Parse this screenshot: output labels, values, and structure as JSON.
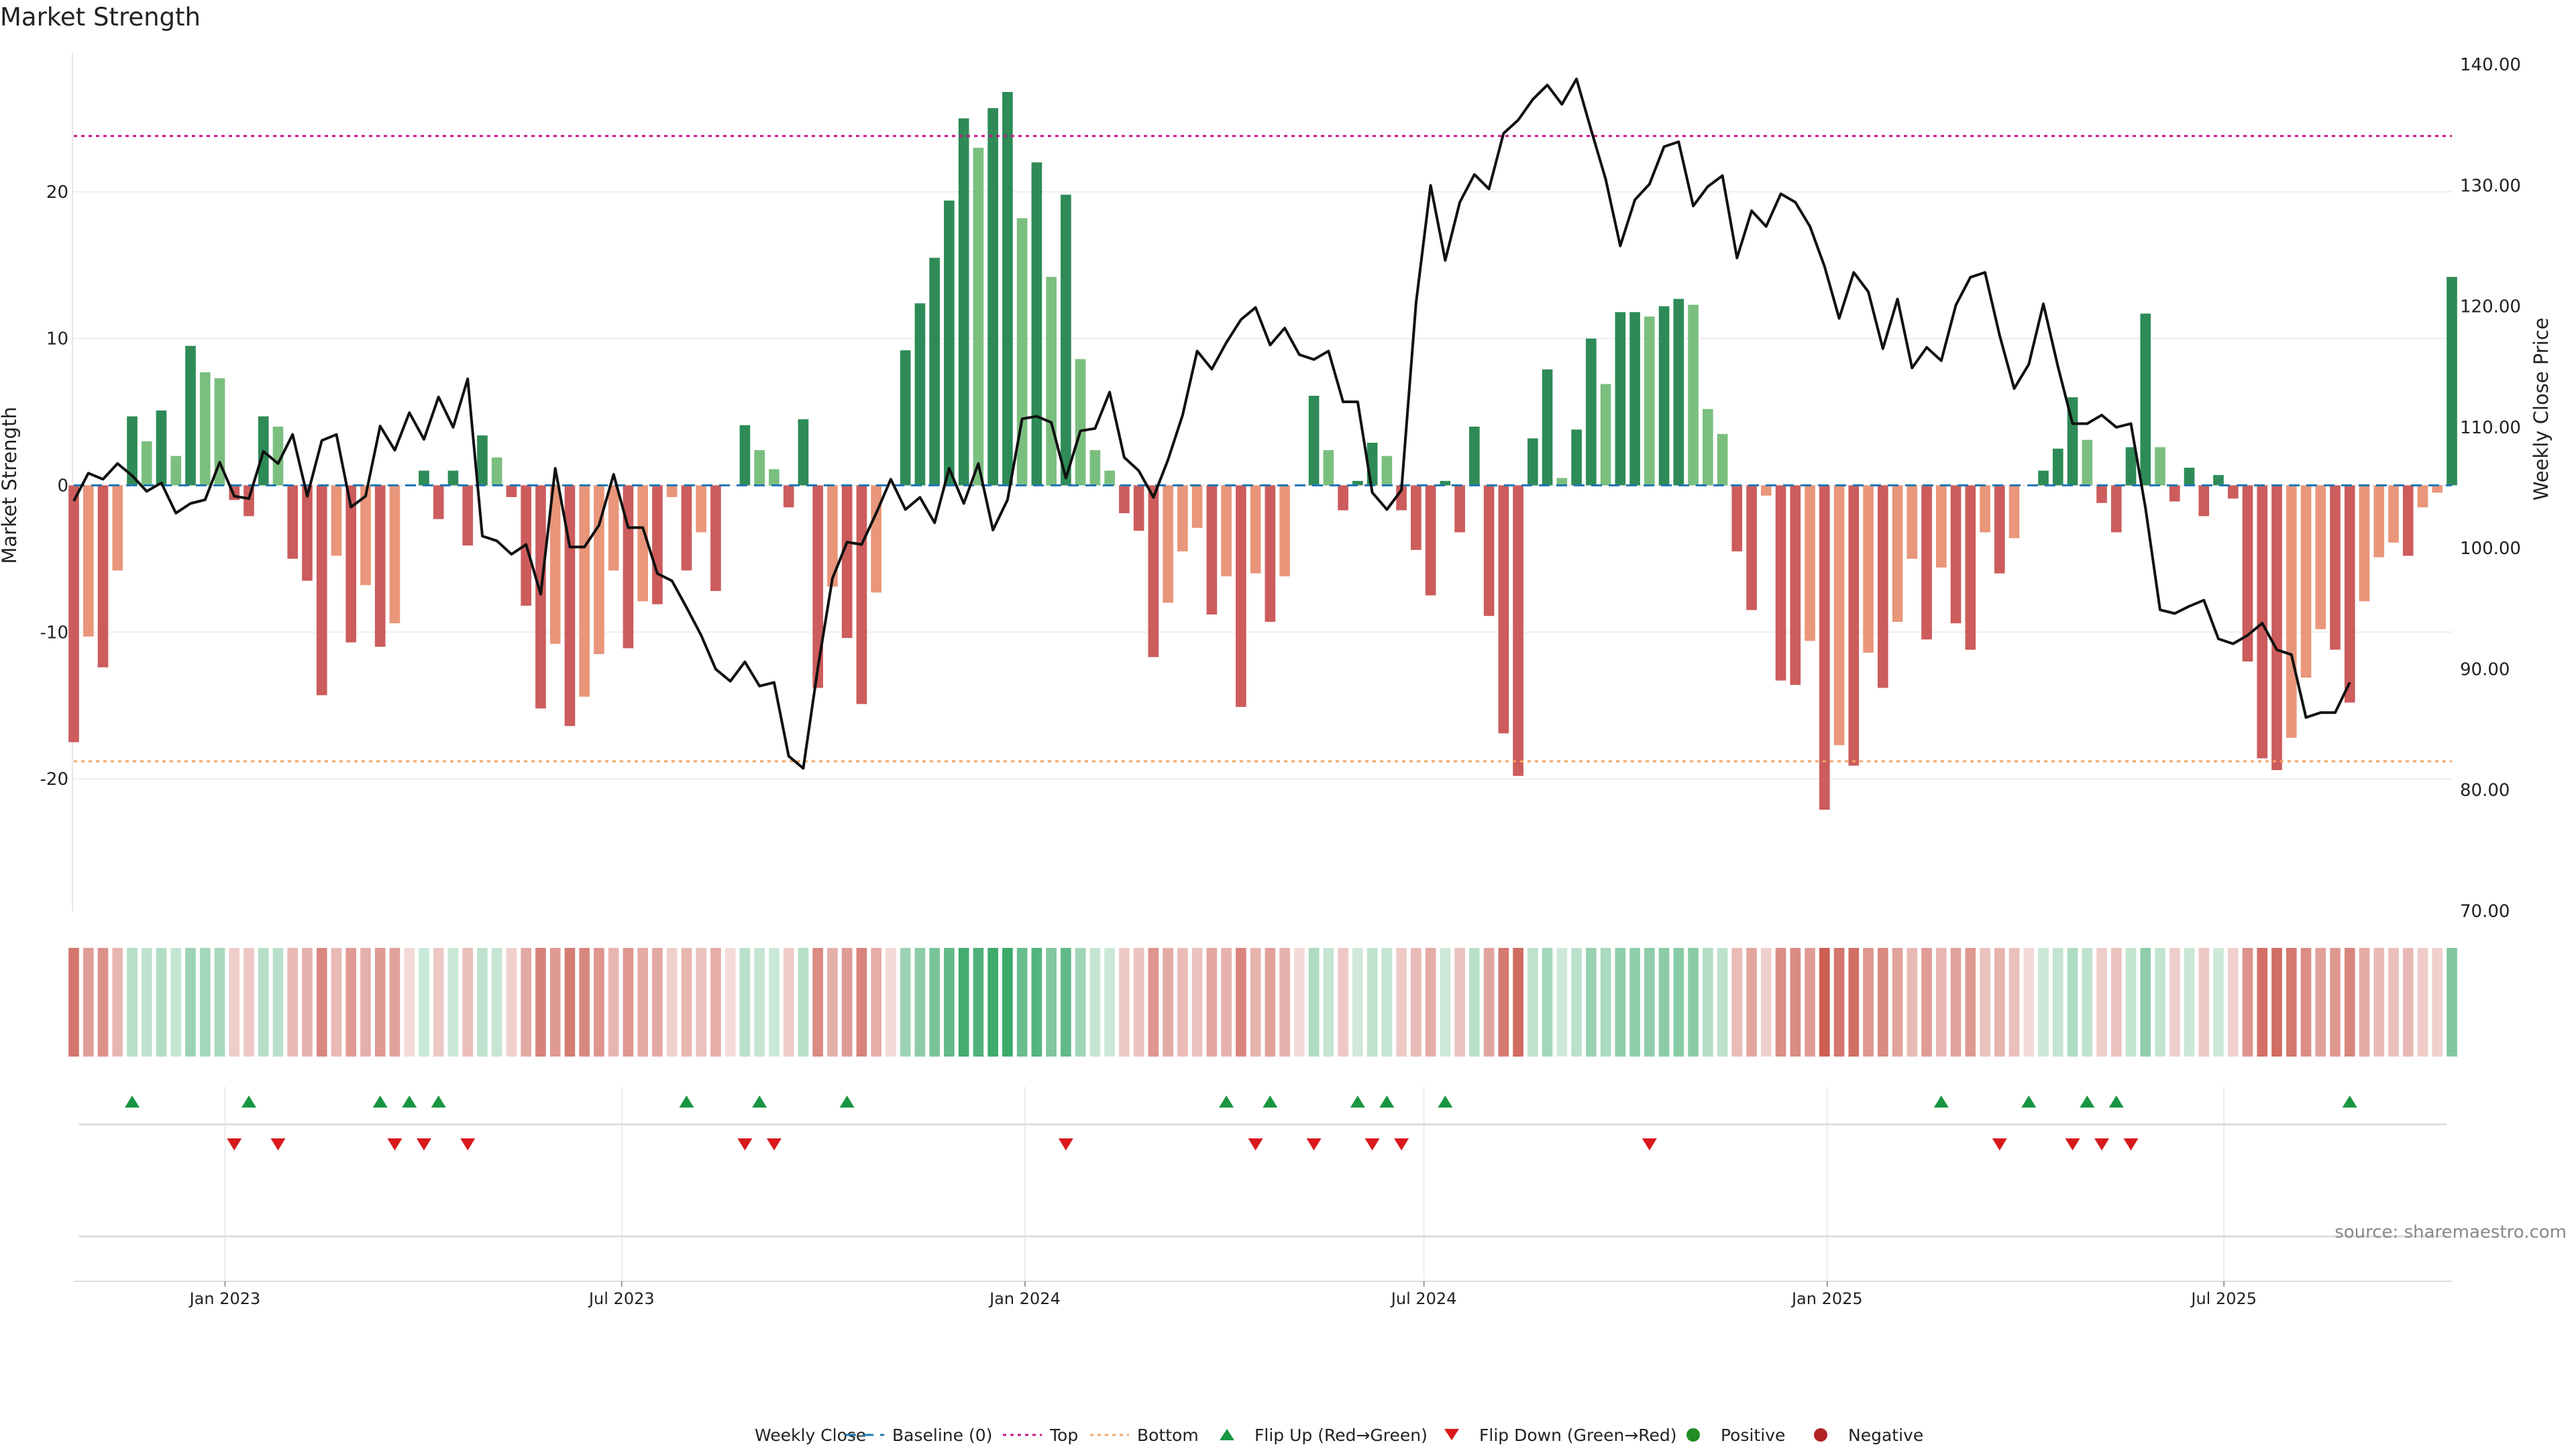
{
  "title": "Market Strength",
  "source_text": "source: sharemaestro.com",
  "colors": {
    "strong_green": "#2e8b57",
    "light_green": "#7bbf7f",
    "strong_red": "#cd5c5c",
    "light_red": "#e9967a",
    "close_line": "#111111",
    "baseline": "#1f77b4",
    "top": "#c71585",
    "bottom": "#f4a460",
    "flip_up": "#1a9641",
    "flip_down": "#d7191c",
    "positive": "#228b22",
    "negative": "#b22222"
  },
  "chart_data": {
    "type": "bar",
    "title": "Market Strength",
    "xlabel": "",
    "ylabel": "Market Strength",
    "y2label": "Weekly Close Price",
    "ylim": [
      -29,
      29.5
    ],
    "y2lim": [
      70,
      141
    ],
    "yticks": [
      -20,
      -10,
      0,
      10,
      20
    ],
    "y2ticks": [
      "70.00",
      "80.00",
      "90.00",
      "100.00",
      "110.00",
      "120.00",
      "130.00",
      "140.00"
    ],
    "xticks": [
      {
        "label": "Jan 2023",
        "date": "2023-01-01"
      },
      {
        "label": "Jul 2023",
        "date": "2023-07-01"
      },
      {
        "label": "Jan 2024",
        "date": "2024-01-01"
      },
      {
        "label": "Jul 2024",
        "date": "2024-07-01"
      },
      {
        "label": "Jan 2025",
        "date": "2025-01-01"
      },
      {
        "label": "Jul 2025",
        "date": "2025-07-01"
      }
    ],
    "first_week": "2022-10-24",
    "last_week": "2025-10-13",
    "top_level": 23.8,
    "bottom_level": -18.8,
    "baseline": 0,
    "strength": [
      -17.5,
      -10.3,
      -12.4,
      -5.8,
      4.7,
      3.0,
      5.1,
      2.0,
      9.5,
      7.7,
      7.3,
      -1.0,
      -2.1,
      4.7,
      4.0,
      -5.0,
      -6.5,
      -14.3,
      -4.8,
      -10.7,
      -6.8,
      -11.0,
      -9.4,
      0,
      1.0,
      -2.3,
      1.0,
      -4.1,
      3.4,
      1.9,
      -0.8,
      -8.2,
      -15.2,
      -10.8,
      -16.4,
      -14.4,
      -11.5,
      -5.8,
      -11.1,
      -7.9,
      -8.1,
      -0.8,
      -5.8,
      -3.2,
      -7.2,
      0,
      4.1,
      2.4,
      1.1,
      -1.5,
      4.5,
      -13.8,
      -6.9,
      -10.4,
      -14.9,
      -7.3,
      0,
      9.2,
      12.4,
      15.5,
      19.4,
      25.0,
      23.0,
      25.7,
      26.8,
      18.2,
      22.0,
      14.2,
      19.8,
      8.6,
      2.4,
      1.0,
      -1.9,
      -3.1,
      -11.7,
      -8.0,
      -4.5,
      -2.9,
      -8.8,
      -6.2,
      -15.1,
      -6.0,
      -9.3,
      -6.2,
      0,
      6.1,
      2.4,
      -1.7,
      0.3,
      2.9,
      2.0,
      -1.7,
      -4.4,
      -7.5,
      0.3,
      -3.2,
      4.0,
      -8.9,
      -16.9,
      -19.8,
      3.2,
      7.9,
      0.5,
      3.8,
      10.0,
      6.9,
      11.8,
      11.8,
      11.5,
      12.2,
      12.7,
      12.3,
      5.2,
      3.5,
      -4.5,
      -8.5,
      -0.7,
      -13.3,
      -13.6,
      -10.6,
      -22.1,
      -17.7,
      -19.1,
      -11.4,
      -13.8,
      -9.3,
      -5.0,
      -10.5,
      -5.6,
      -9.4,
      -11.2,
      -3.2,
      -6.0,
      -3.6,
      0,
      1.0,
      2.5,
      6.0,
      3.1,
      -1.2,
      -3.2,
      2.6,
      11.7,
      2.6,
      -1.1,
      1.2,
      -2.1,
      0.7,
      -0.9,
      -12.0,
      -18.6,
      -19.4,
      -17.2,
      -13.1,
      -9.8,
      -11.2,
      -14.8,
      -7.9,
      -4.9,
      -3.9,
      -4.8,
      -1.5,
      -0.5,
      14.2
    ],
    "close": [
      103.9,
      106.2,
      105.7,
      107.0,
      106.0,
      104.7,
      105.4,
      102.9,
      103.7,
      104.0,
      107.1,
      104.3,
      104.1,
      108.0,
      107.0,
      109.4,
      104.3,
      108.9,
      109.4,
      103.4,
      104.3,
      110.1,
      108.1,
      111.2,
      109.0,
      112.5,
      110.0,
      114.0,
      101.0,
      100.6,
      99.5,
      100.3,
      96.2,
      106.6,
      100.1,
      100.1,
      101.9,
      106.1,
      101.7,
      101.7,
      97.9,
      97.3,
      95.1,
      92.8,
      90.0,
      89.0,
      90.6,
      88.6,
      88.9,
      82.8,
      81.8,
      90.1,
      97.5,
      100.5,
      100.3,
      102.9,
      105.7,
      103.2,
      104.2,
      102.1,
      106.6,
      103.7,
      107.0,
      101.5,
      104.0,
      110.7,
      110.9,
      110.4,
      105.8,
      109.7,
      109.9,
      112.9,
      107.5,
      106.4,
      104.2,
      107.3,
      111.0,
      116.3,
      114.8,
      117.0,
      118.9,
      119.9,
      116.8,
      118.2,
      116.0,
      115.6,
      116.3,
      112.1,
      112.1,
      104.6,
      103.2,
      104.8,
      120.3,
      130.0,
      123.8,
      128.6,
      130.9,
      129.7,
      134.3,
      135.4,
      137.1,
      138.3,
      136.7,
      138.8,
      134.6,
      130.5,
      125.0,
      128.8,
      130.1,
      133.2,
      133.6,
      128.3,
      129.9,
      130.8,
      124.0,
      127.9,
      126.6,
      129.3,
      128.6,
      126.6,
      123.3,
      119.0,
      122.8,
      121.2,
      116.5,
      120.6,
      114.9,
      116.6,
      115.5,
      120.1,
      122.4,
      122.8,
      117.6,
      113.2,
      115.2,
      120.2,
      115.0,
      110.3,
      110.3,
      111.0,
      110.0,
      110.3,
      103.3,
      94.9,
      94.6,
      95.2,
      95.7,
      92.5,
      92.1,
      92.8,
      93.8,
      91.6,
      91.2,
      86.0,
      86.4,
      86.4,
      88.9
    ],
    "flip_up_weeks": [
      4,
      12,
      21,
      23,
      25,
      42,
      47,
      53,
      79,
      82,
      88,
      90,
      94,
      128,
      134,
      138,
      140,
      156
    ],
    "flip_down_weeks": [
      11,
      14,
      22,
      24,
      27,
      46,
      48,
      68,
      81,
      85,
      89,
      91,
      108,
      132,
      137,
      139,
      141
    ],
    "legend": [
      {
        "key": "close",
        "label": "Weekly Close",
        "symbol": "line"
      },
      {
        "key": "baseline",
        "label": "Baseline (0)",
        "symbol": "dash"
      },
      {
        "key": "top",
        "label": "Top",
        "symbol": "dot"
      },
      {
        "key": "bottom",
        "label": "Bottom",
        "symbol": "dot"
      },
      {
        "key": "flip_up",
        "label": "Flip Up (Red→Green)",
        "symbol": "tri-up"
      },
      {
        "key": "flip_down",
        "label": "Flip Down (Green→Red)",
        "symbol": "tri-down"
      },
      {
        "key": "positive",
        "label": "Positive",
        "symbol": "circle"
      },
      {
        "key": "negative",
        "label": "Negative",
        "symbol": "circle"
      }
    ],
    "legend_position": "bottom-center"
  }
}
